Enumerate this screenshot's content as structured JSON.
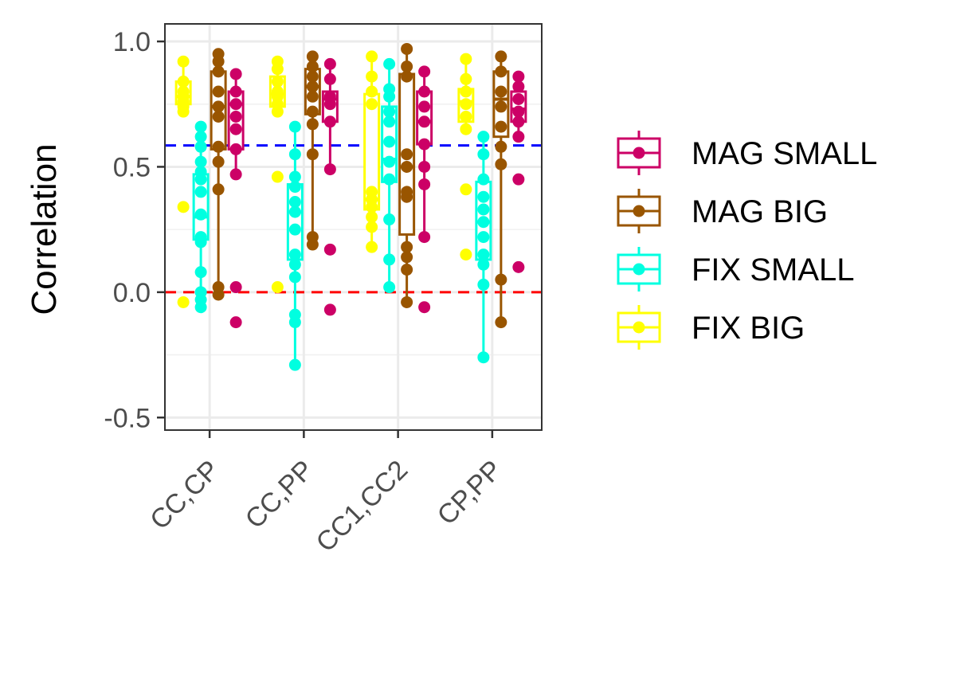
{
  "chart_data": {
    "type": "boxplot",
    "title": "",
    "xlabel": "",
    "ylabel": "Correlation",
    "ylim": [
      -0.55,
      1.07
    ],
    "y_ticks": [
      "-0.5",
      "0.0",
      "0.5",
      "1.0"
    ],
    "y_tick_values": [
      -0.5,
      0.0,
      0.5,
      1.0
    ],
    "categories": [
      "CC,CP",
      "CC,PP",
      "CC1,CC2",
      "CP,PP"
    ],
    "grid": true,
    "legend_position": "right",
    "reference_lines": [
      {
        "y": 0.585,
        "color": "#0000ff",
        "style": "dashed"
      },
      {
        "y": 0.0,
        "color": "#ff0000",
        "style": "dashed"
      }
    ],
    "series": [
      {
        "name": "FIX BIG",
        "color": "#ffff00",
        "boxes": [
          {
            "min": 0.72,
            "q1": 0.75,
            "median": 0.78,
            "q3": 0.84,
            "max": 0.92,
            "points": [
              -0.04,
              0.34,
              0.72,
              0.74,
              0.76,
              0.78,
              0.8,
              0.84,
              0.92
            ]
          },
          {
            "min": 0.71,
            "q1": 0.74,
            "median": 0.79,
            "q3": 0.86,
            "max": 0.92,
            "points": [
              0.02,
              0.46,
              0.72,
              0.75,
              0.78,
              0.8,
              0.84,
              0.89,
              0.92
            ]
          },
          {
            "min": 0.18,
            "q1": 0.33,
            "median": 0.37,
            "q3": 0.79,
            "max": 0.94,
            "points": [
              0.18,
              0.26,
              0.3,
              0.34,
              0.37,
              0.4,
              0.75,
              0.8,
              0.86,
              0.94
            ]
          },
          {
            "min": 0.65,
            "q1": 0.68,
            "median": 0.76,
            "q3": 0.81,
            "max": 0.93,
            "points": [
              0.15,
              0.41,
              0.65,
              0.7,
              0.75,
              0.8,
              0.85,
              0.93
            ]
          }
        ]
      },
      {
        "name": "FIX SMALL",
        "color": "#00ffe0",
        "boxes": [
          {
            "min": -0.06,
            "q1": 0.21,
            "median": 0.3,
            "q3": 0.47,
            "max": 0.66,
            "points": [
              -0.06,
              -0.03,
              0.0,
              0.08,
              0.2,
              0.22,
              0.31,
              0.4,
              0.45,
              0.48,
              0.52,
              0.58,
              0.62,
              0.66
            ]
          },
          {
            "min": -0.29,
            "q1": 0.13,
            "median": 0.32,
            "q3": 0.43,
            "max": 0.66,
            "points": [
              -0.29,
              -0.12,
              -0.09,
              0.06,
              0.11,
              0.15,
              0.25,
              0.32,
              0.36,
              0.42,
              0.46,
              0.55,
              0.66
            ]
          },
          {
            "min": 0.02,
            "q1": 0.44,
            "median": 0.53,
            "q3": 0.74,
            "max": 0.91,
            "points": [
              0.02,
              0.13,
              0.29,
              0.45,
              0.52,
              0.6,
              0.68,
              0.72,
              0.78,
              0.81,
              0.91
            ]
          },
          {
            "min": -0.26,
            "q1": 0.13,
            "median": 0.28,
            "q3": 0.44,
            "max": 0.62,
            "points": [
              -0.26,
              0.03,
              0.11,
              0.15,
              0.22,
              0.28,
              0.33,
              0.38,
              0.45,
              0.55,
              0.62
            ]
          }
        ]
      },
      {
        "name": "MAG BIG",
        "color": "#995500",
        "boxes": [
          {
            "min": -0.01,
            "q1": 0.57,
            "median": 0.74,
            "q3": 0.88,
            "max": 0.95,
            "points": [
              -0.01,
              0.02,
              0.41,
              0.52,
              0.58,
              0.7,
              0.74,
              0.8,
              0.88,
              0.92,
              0.95
            ]
          },
          {
            "min": 0.19,
            "q1": 0.71,
            "median": 0.82,
            "q3": 0.89,
            "max": 0.94,
            "points": [
              0.19,
              0.22,
              0.55,
              0.67,
              0.72,
              0.78,
              0.82,
              0.86,
              0.9,
              0.94
            ]
          },
          {
            "min": -0.04,
            "q1": 0.23,
            "median": 0.5,
            "q3": 0.87,
            "max": 0.97,
            "points": [
              -0.04,
              0.09,
              0.14,
              0.18,
              0.38,
              0.4,
              0.5,
              0.55,
              0.86,
              0.9,
              0.97
            ]
          },
          {
            "min": -0.12,
            "q1": 0.62,
            "median": 0.77,
            "q3": 0.88,
            "max": 0.94,
            "points": [
              -0.12,
              0.05,
              0.51,
              0.58,
              0.66,
              0.74,
              0.8,
              0.88,
              0.94
            ]
          }
        ]
      },
      {
        "name": "MAG SMALL",
        "color": "#cc0066",
        "boxes": [
          {
            "min": 0.47,
            "q1": 0.57,
            "median": 0.75,
            "q3": 0.8,
            "max": 0.87,
            "points": [
              -0.12,
              0.02,
              0.47,
              0.57,
              0.65,
              0.7,
              0.75,
              0.8,
              0.87
            ]
          },
          {
            "min": 0.49,
            "q1": 0.68,
            "median": 0.77,
            "q3": 0.8,
            "max": 0.91,
            "points": [
              -0.07,
              0.17,
              0.49,
              0.68,
              0.75,
              0.78,
              0.85,
              0.91
            ]
          },
          {
            "min": 0.22,
            "q1": 0.59,
            "median": 0.68,
            "q3": 0.8,
            "max": 0.88,
            "points": [
              -0.06,
              0.22,
              0.43,
              0.5,
              0.59,
              0.68,
              0.74,
              0.8,
              0.88
            ]
          },
          {
            "min": 0.62,
            "q1": 0.68,
            "median": 0.73,
            "q3": 0.8,
            "max": 0.86,
            "points": [
              0.1,
              0.45,
              0.62,
              0.68,
              0.72,
              0.77,
              0.82,
              0.86
            ]
          }
        ]
      }
    ],
    "legend_order": [
      "MAG SMALL",
      "MAG BIG",
      "FIX SMALL",
      "FIX BIG"
    ]
  }
}
